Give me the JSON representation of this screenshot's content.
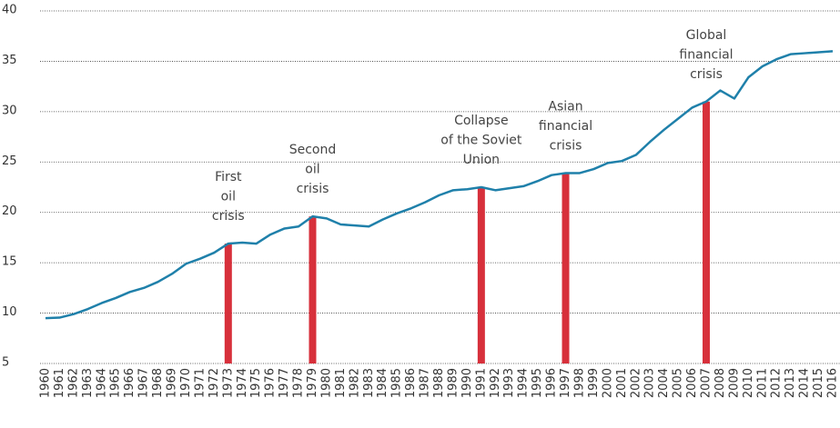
{
  "chart_data": {
    "type": "line",
    "categories": [
      "1960",
      "1961",
      "1962",
      "1963",
      "1964",
      "1965",
      "1966",
      "1967",
      "1968",
      "1969",
      "1970",
      "1971",
      "1972",
      "1973",
      "1974",
      "1975",
      "1976",
      "1977",
      "1978",
      "1979",
      "1980",
      "1981",
      "1982",
      "1983",
      "1984",
      "1985",
      "1986",
      "1987",
      "1988",
      "1989",
      "1990",
      "1991",
      "1992",
      "1993",
      "1994",
      "1995",
      "1996",
      "1997",
      "1998",
      "1999",
      "2000",
      "2001",
      "2002",
      "2003",
      "2004",
      "2005",
      "2006",
      "2007",
      "2008",
      "2009",
      "2010",
      "2011",
      "2012",
      "2013",
      "2014",
      "2015",
      "2016"
    ],
    "values": [
      9.5,
      9.55,
      9.9,
      10.4,
      11.0,
      11.5,
      12.1,
      12.5,
      13.1,
      13.9,
      14.9,
      15.4,
      16.0,
      16.9,
      17.0,
      16.9,
      17.8,
      18.4,
      18.6,
      19.6,
      19.4,
      18.8,
      18.7,
      18.6,
      19.3,
      19.9,
      20.4,
      21.0,
      21.7,
      22.2,
      22.3,
      22.5,
      22.2,
      22.4,
      22.6,
      23.1,
      23.7,
      23.9,
      23.9,
      24.3,
      24.9,
      25.1,
      25.7,
      27.0,
      28.2,
      29.3,
      30.4,
      31.0,
      32.1,
      31.3,
      33.4,
      34.5,
      35.2,
      35.7,
      35.8,
      35.9,
      36.0
    ],
    "color": "#1f80aa",
    "ylim": [
      5,
      40
    ],
    "yticks": [
      5,
      10,
      15,
      20,
      25,
      30,
      35,
      40
    ],
    "grid": true,
    "annotations": [
      {
        "category": "1973",
        "value": 16.9,
        "lines": [
          "First",
          "oil",
          "crisis"
        ]
      },
      {
        "category": "1979",
        "value": 19.6,
        "lines": [
          "Second",
          "oil",
          "crisis"
        ]
      },
      {
        "category": "1991",
        "value": 22.5,
        "lines": [
          "Collapse",
          "of the Soviet",
          "Union"
        ]
      },
      {
        "category": "1997",
        "value": 23.9,
        "lines": [
          "Asian",
          "financial",
          "crisis"
        ]
      },
      {
        "category": "2007",
        "value": 31.0,
        "lines": [
          "Global",
          "financial",
          "crisis"
        ]
      }
    ],
    "annotation_color": "#d7303b"
  }
}
